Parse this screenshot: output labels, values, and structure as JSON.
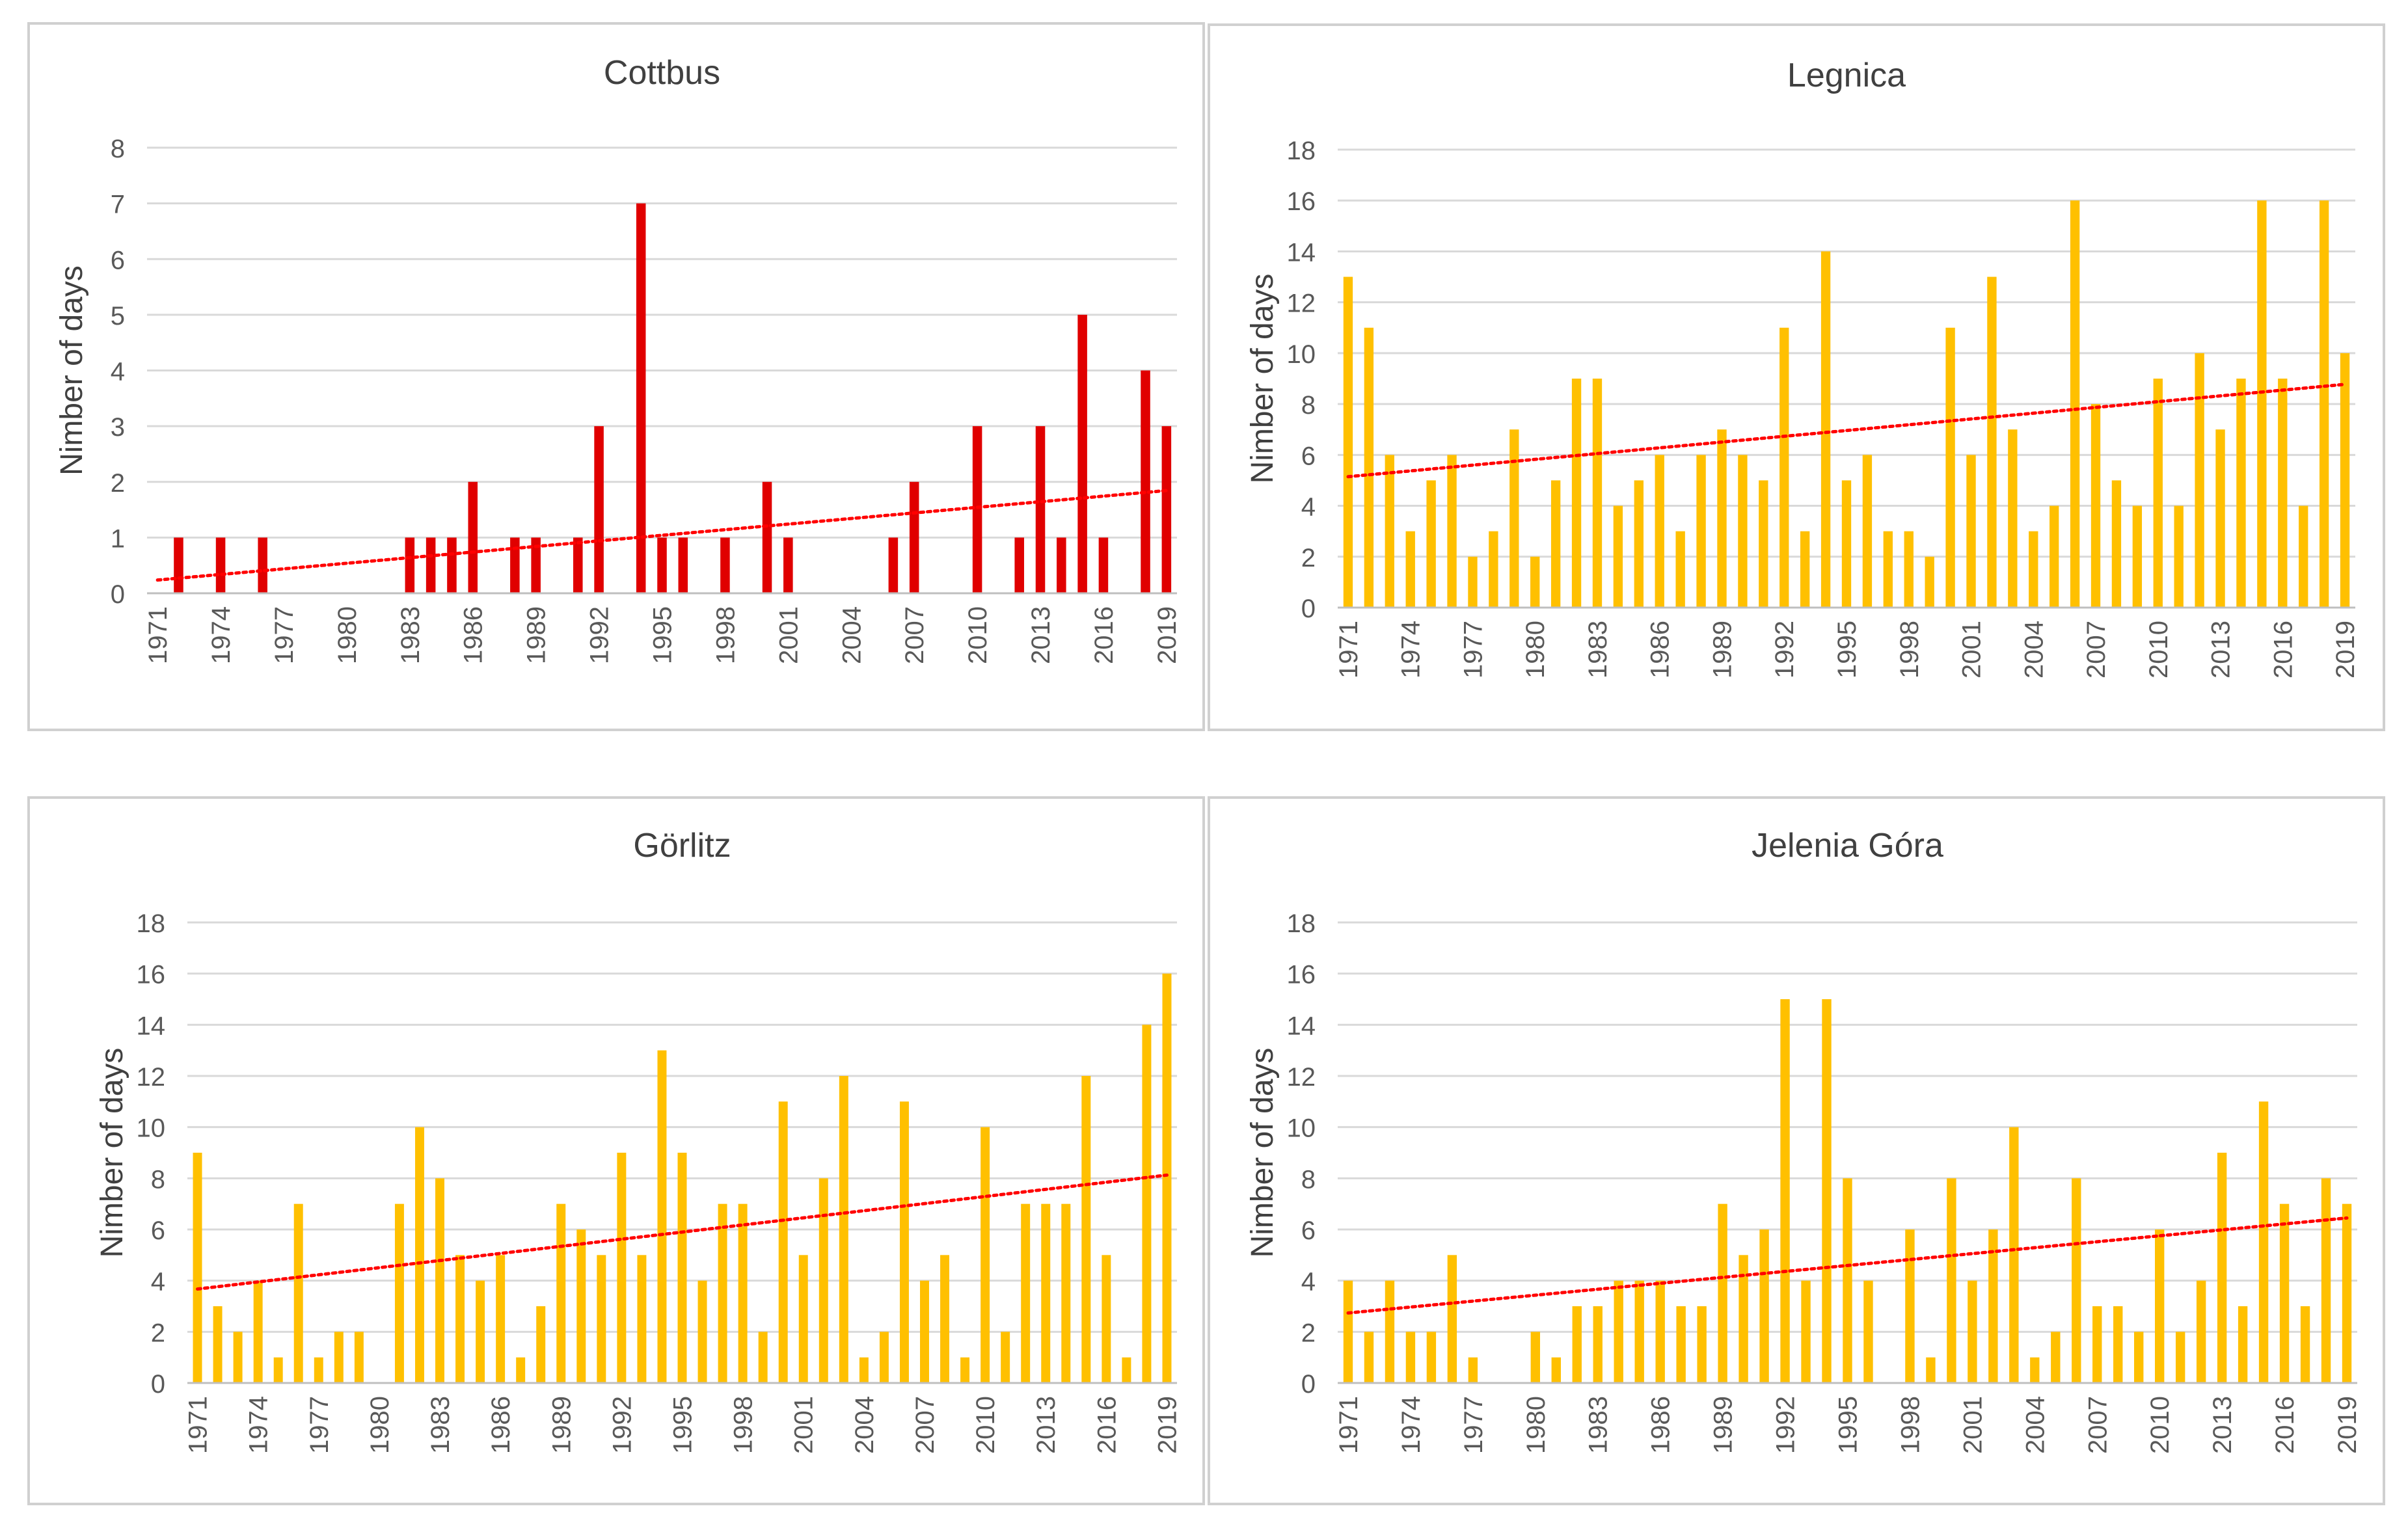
{
  "chart_data": [
    {
      "type": "bar",
      "title": "Cottbus",
      "ylabel": "Nimber of days",
      "xlabel": "",
      "color": "#e00000",
      "trend_color": "#ff0000",
      "ylim": [
        0,
        8
      ],
      "ytick_step": 1,
      "x_tick_labels": [
        "1971",
        "1974",
        "1977",
        "1980",
        "1983",
        "1986",
        "1989",
        "1992",
        "1995",
        "1998",
        "2001",
        "2004",
        "2007",
        "2010",
        "2013",
        "2016",
        "2019"
      ],
      "categories": [
        1971,
        1972,
        1973,
        1974,
        1975,
        1976,
        1977,
        1978,
        1979,
        1980,
        1981,
        1982,
        1983,
        1984,
        1985,
        1986,
        1987,
        1988,
        1989,
        1990,
        1991,
        1992,
        1993,
        1994,
        1995,
        1996,
        1997,
        1998,
        1999,
        2000,
        2001,
        2002,
        2003,
        2004,
        2005,
        2006,
        2007,
        2008,
        2009,
        2010,
        2011,
        2012,
        2013,
        2014,
        2015,
        2016,
        2017,
        2018,
        2019
      ],
      "values": [
        0,
        1,
        0,
        1,
        0,
        1,
        0,
        0,
        0,
        0,
        0,
        0,
        1,
        1,
        1,
        2,
        0,
        1,
        1,
        0,
        1,
        3,
        0,
        7,
        1,
        1,
        0,
        1,
        0,
        2,
        1,
        0,
        0,
        0,
        0,
        1,
        2,
        0,
        0,
        3,
        0,
        1,
        3,
        1,
        5,
        1,
        0,
        4,
        3
      ],
      "trendline": "linear (dotted)"
    },
    {
      "type": "bar",
      "title": "Legnica",
      "ylabel": "Nimber of days",
      "xlabel": "",
      "color": "#ffc000",
      "trend_color": "#ff0000",
      "ylim": [
        0,
        18
      ],
      "ytick_step": 2,
      "x_tick_labels": [
        "1971",
        "1974",
        "1977",
        "1980",
        "1983",
        "1986",
        "1989",
        "1992",
        "1995",
        "1998",
        "2001",
        "2004",
        "2007",
        "2010",
        "2013",
        "2016",
        "2019"
      ],
      "categories": [
        1971,
        1972,
        1973,
        1974,
        1975,
        1976,
        1977,
        1978,
        1979,
        1980,
        1981,
        1982,
        1983,
        1984,
        1985,
        1986,
        1987,
        1988,
        1989,
        1990,
        1991,
        1992,
        1993,
        1994,
        1995,
        1996,
        1997,
        1998,
        1999,
        2000,
        2001,
        2002,
        2003,
        2004,
        2005,
        2006,
        2007,
        2008,
        2009,
        2010,
        2011,
        2012,
        2013,
        2014,
        2015,
        2016,
        2017,
        2018,
        2019
      ],
      "values": [
        13,
        11,
        6,
        3,
        5,
        6,
        2,
        3,
        7,
        2,
        5,
        9,
        9,
        4,
        5,
        6,
        3,
        6,
        7,
        6,
        5,
        11,
        3,
        14,
        5,
        6,
        3,
        3,
        2,
        11,
        6,
        13,
        7,
        3,
        4,
        16,
        8,
        5,
        4,
        9,
        4,
        10,
        7,
        9,
        16,
        9,
        4,
        16,
        10
      ],
      "trendline": "linear (dotted)"
    },
    {
      "type": "bar",
      "title": "Görlitz",
      "ylabel": "Nimber of days",
      "xlabel": "",
      "color": "#ffc000",
      "trend_color": "#ff0000",
      "ylim": [
        0,
        18
      ],
      "ytick_step": 2,
      "x_tick_labels": [
        "1971",
        "1974",
        "1977",
        "1980",
        "1983",
        "1986",
        "1989",
        "1992",
        "1995",
        "1998",
        "2001",
        "2004",
        "2007",
        "2010",
        "2013",
        "2016",
        "2019"
      ],
      "categories": [
        1971,
        1972,
        1973,
        1974,
        1975,
        1976,
        1977,
        1978,
        1979,
        1980,
        1981,
        1982,
        1983,
        1984,
        1985,
        1986,
        1987,
        1988,
        1989,
        1990,
        1991,
        1992,
        1993,
        1994,
        1995,
        1996,
        1997,
        1998,
        1999,
        2000,
        2001,
        2002,
        2003,
        2004,
        2005,
        2006,
        2007,
        2008,
        2009,
        2010,
        2011,
        2012,
        2013,
        2014,
        2015,
        2016,
        2017,
        2018,
        2019
      ],
      "values": [
        9,
        3,
        2,
        4,
        1,
        7,
        1,
        2,
        2,
        0,
        7,
        10,
        8,
        5,
        4,
        5,
        1,
        3,
        7,
        6,
        5,
        9,
        5,
        13,
        9,
        4,
        7,
        7,
        2,
        11,
        5,
        8,
        12,
        1,
        2,
        11,
        4,
        5,
        1,
        10,
        2,
        7,
        7,
        7,
        12,
        5,
        1,
        14,
        16
      ],
      "trendline": "linear (dotted)"
    },
    {
      "type": "bar",
      "title": "Jelenia Góra",
      "ylabel": "Nimber of days",
      "xlabel": "",
      "color": "#ffc000",
      "trend_color": "#ff0000",
      "ylim": [
        0,
        18
      ],
      "ytick_step": 2,
      "x_tick_labels": [
        "1971",
        "1974",
        "1977",
        "1980",
        "1983",
        "1986",
        "1989",
        "1992",
        "1995",
        "1998",
        "2001",
        "2004",
        "2007",
        "2010",
        "2013",
        "2016",
        "2019"
      ],
      "categories": [
        1971,
        1972,
        1973,
        1974,
        1975,
        1976,
        1977,
        1978,
        1979,
        1980,
        1981,
        1982,
        1983,
        1984,
        1985,
        1986,
        1987,
        1988,
        1989,
        1990,
        1991,
        1992,
        1993,
        1994,
        1995,
        1996,
        1997,
        1998,
        1999,
        2000,
        2001,
        2002,
        2003,
        2004,
        2005,
        2006,
        2007,
        2008,
        2009,
        2010,
        2011,
        2012,
        2013,
        2014,
        2015,
        2016,
        2017,
        2018,
        2019
      ],
      "values": [
        4,
        2,
        4,
        2,
        2,
        5,
        1,
        0,
        0,
        2,
        1,
        3,
        3,
        4,
        4,
        4,
        3,
        3,
        7,
        5,
        6,
        15,
        4,
        15,
        8,
        4,
        0,
        6,
        1,
        8,
        4,
        6,
        10,
        1,
        2,
        8,
        3,
        3,
        2,
        6,
        2,
        4,
        9,
        3,
        11,
        7,
        3,
        8,
        7
      ],
      "trendline": "linear (dotted)"
    }
  ]
}
